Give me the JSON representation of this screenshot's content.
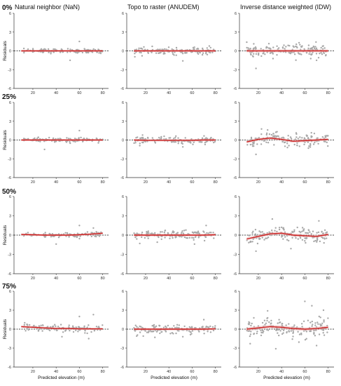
{
  "figure": {
    "column_titles": [
      "Natural neighbor (NaN)",
      "Topo to raster (ANUDEM)",
      "Inverse distance weighted (IDW)"
    ],
    "row_labels": [
      "0%",
      "25%",
      "50%",
      "75%"
    ],
    "xlabel": "Predicted elevation (m)",
    "ylabel": "Residuals"
  },
  "colors": {
    "points": "#a8a8a8",
    "fit": "#cc1f1f",
    "band": "#e8b0b0",
    "zero_line": "#111111",
    "axis": "#333333"
  },
  "chart_data": [
    {
      "type": "scatter",
      "row": "0%",
      "method": "Natural neighbor (NaN)",
      "xlim": [
        5,
        85
      ],
      "ylim": [
        -6,
        6
      ],
      "xticks": [
        20,
        40,
        60,
        80
      ],
      "yticks": [
        -6,
        -3,
        0,
        3,
        6
      ],
      "spread": 0.3,
      "outliers": [
        [
          52,
          -1.5
        ],
        [
          60,
          1.5
        ]
      ],
      "x_range": [
        12,
        80
      ],
      "n": 120,
      "fit": {
        "x": [
          10,
          20,
          30,
          40,
          50,
          60,
          70,
          80
        ],
        "y": [
          0,
          0,
          0,
          0,
          0,
          0,
          0,
          0
        ]
      }
    },
    {
      "type": "scatter",
      "row": "0%",
      "method": "Topo to raster (ANUDEM)",
      "xlim": [
        5,
        85
      ],
      "ylim": [
        -6,
        6
      ],
      "xticks": [
        20,
        40,
        60,
        80
      ],
      "yticks": [
        -6,
        -3,
        0,
        3,
        6
      ],
      "spread": 0.45,
      "outliers": [
        [
          52,
          -1.6
        ],
        [
          17,
          -0.8
        ]
      ],
      "x_range": [
        10,
        80
      ],
      "n": 140,
      "fit": {
        "x": [
          10,
          20,
          30,
          40,
          50,
          60,
          70,
          80
        ],
        "y": [
          0,
          0,
          0,
          0,
          0,
          0,
          0,
          0
        ]
      }
    },
    {
      "type": "scatter",
      "row": "0%",
      "method": "Inverse distance weighted (IDW)",
      "xlim": [
        5,
        85
      ],
      "ylim": [
        -6,
        6
      ],
      "xticks": [
        20,
        40,
        60,
        80
      ],
      "yticks": [
        -6,
        -3,
        0,
        3,
        6
      ],
      "spread": 0.85,
      "outliers": [
        [
          18,
          -2.8
        ],
        [
          55,
          1.3
        ],
        [
          70,
          -1.5
        ]
      ],
      "x_range": [
        10,
        80
      ],
      "n": 150,
      "fit": {
        "x": [
          10,
          20,
          30,
          40,
          50,
          60,
          70,
          80
        ],
        "y": [
          0,
          0,
          0,
          0,
          0,
          0,
          0,
          0
        ]
      }
    },
    {
      "type": "scatter",
      "row": "25%",
      "method": "Natural neighbor (NaN)",
      "xlim": [
        5,
        85
      ],
      "ylim": [
        -6,
        6
      ],
      "xticks": [
        20,
        40,
        60,
        80
      ],
      "yticks": [
        -6,
        -3,
        0,
        3,
        6
      ],
      "spread": 0.3,
      "outliers": [
        [
          30,
          -1.5
        ],
        [
          60,
          1.5
        ]
      ],
      "x_range": [
        12,
        80
      ],
      "n": 120,
      "fit": {
        "x": [
          10,
          20,
          30,
          40,
          50,
          60,
          70,
          80
        ],
        "y": [
          0,
          0,
          0,
          0,
          0,
          0,
          0,
          0
        ]
      }
    },
    {
      "type": "scatter",
      "row": "25%",
      "method": "Topo to raster (ANUDEM)",
      "xlim": [
        5,
        85
      ],
      "ylim": [
        -6,
        6
      ],
      "xticks": [
        20,
        40,
        60,
        80
      ],
      "yticks": [
        -6,
        -3,
        0,
        3,
        6
      ],
      "spread": 0.45,
      "outliers": [
        [
          15,
          -0.9
        ],
        [
          52,
          -1.1
        ]
      ],
      "x_range": [
        10,
        80
      ],
      "n": 140,
      "fit": {
        "x": [
          10,
          20,
          30,
          40,
          50,
          60,
          70,
          80
        ],
        "y": [
          0,
          -0.05,
          -0.05,
          -0.05,
          -0.05,
          -0.05,
          0,
          0
        ]
      }
    },
    {
      "type": "scatter",
      "row": "25%",
      "method": "Inverse distance weighted (IDW)",
      "xlim": [
        5,
        85
      ],
      "ylim": [
        -6,
        6
      ],
      "xticks": [
        20,
        40,
        60,
        80
      ],
      "yticks": [
        -6,
        -3,
        0,
        3,
        6
      ],
      "spread": 0.85,
      "outliers": [
        [
          18,
          -2.3
        ],
        [
          28,
          1.6
        ],
        [
          45,
          -1.2
        ]
      ],
      "x_range": [
        10,
        80
      ],
      "n": 150,
      "fit": {
        "x": [
          10,
          20,
          30,
          40,
          50,
          60,
          70,
          80
        ],
        "y": [
          -0.3,
          0.1,
          0.3,
          0.1,
          -0.2,
          -0.1,
          0,
          0.1
        ]
      }
    },
    {
      "type": "scatter",
      "row": "50%",
      "method": "Natural neighbor (NaN)",
      "xlim": [
        5,
        85
      ],
      "ylim": [
        -6,
        6
      ],
      "xticks": [
        20,
        40,
        60,
        80
      ],
      "yticks": [
        -6,
        -3,
        0,
        3,
        6
      ],
      "spread": 0.35,
      "outliers": [
        [
          40,
          -1.4
        ],
        [
          60,
          1.5
        ],
        [
          72,
          1.1
        ]
      ],
      "x_range": [
        12,
        80
      ],
      "n": 120,
      "fit": {
        "x": [
          10,
          20,
          30,
          40,
          50,
          60,
          70,
          80
        ],
        "y": [
          0.1,
          0.05,
          0,
          0,
          0,
          0.05,
          0.15,
          0.3
        ]
      }
    },
    {
      "type": "scatter",
      "row": "50%",
      "method": "Topo to raster (ANUDEM)",
      "xlim": [
        5,
        85
      ],
      "ylim": [
        -6,
        6
      ],
      "xticks": [
        20,
        40,
        60,
        80
      ],
      "yticks": [
        -6,
        -3,
        0,
        3,
        6
      ],
      "spread": 0.55,
      "outliers": [
        [
          15,
          -1.3
        ],
        [
          30,
          -1.1
        ],
        [
          62,
          -1.4
        ],
        [
          72,
          1.5
        ]
      ],
      "x_range": [
        10,
        80
      ],
      "n": 140,
      "fit": {
        "x": [
          10,
          20,
          30,
          40,
          50,
          60,
          70,
          80
        ],
        "y": [
          0,
          0,
          0,
          0,
          0,
          0,
          0,
          0.05
        ]
      }
    },
    {
      "type": "scatter",
      "row": "50%",
      "method": "Inverse distance weighted (IDW)",
      "xlim": [
        5,
        85
      ],
      "ylim": [
        -6,
        6
      ],
      "xticks": [
        20,
        40,
        60,
        80
      ],
      "yticks": [
        -6,
        -3,
        0,
        3,
        6
      ],
      "spread": 0.9,
      "outliers": [
        [
          18,
          -2.5
        ],
        [
          32,
          2.5
        ],
        [
          48,
          -2.1
        ],
        [
          72,
          2.2
        ]
      ],
      "x_range": [
        10,
        80
      ],
      "n": 150,
      "fit": {
        "x": [
          10,
          20,
          30,
          40,
          50,
          60,
          70,
          80
        ],
        "y": [
          -0.6,
          -0.2,
          0.2,
          0.3,
          0,
          -0.1,
          -0.2,
          0.1
        ]
      }
    },
    {
      "type": "scatter",
      "row": "75%",
      "method": "Natural neighbor (NaN)",
      "xlim": [
        5,
        85
      ],
      "ylim": [
        -6,
        6
      ],
      "xticks": [
        20,
        40,
        60,
        80
      ],
      "yticks": [
        -6,
        -3,
        0,
        3,
        6
      ],
      "spread": 0.45,
      "outliers": [
        [
          13,
          1.0
        ],
        [
          45,
          -1.2
        ],
        [
          60,
          2.0
        ],
        [
          68,
          -1.5
        ],
        [
          72,
          2.3
        ]
      ],
      "x_range": [
        12,
        80
      ],
      "n": 120,
      "fit": {
        "x": [
          10,
          20,
          30,
          40,
          50,
          60,
          70,
          80
        ],
        "y": [
          0.4,
          0.3,
          0.2,
          0.1,
          0.1,
          0.05,
          0.05,
          0.05
        ]
      }
    },
    {
      "type": "scatter",
      "row": "75%",
      "method": "Topo to raster (ANUDEM)",
      "xlim": [
        5,
        85
      ],
      "ylim": [
        -6,
        6
      ],
      "xticks": [
        20,
        40,
        60,
        80
      ],
      "yticks": [
        -6,
        -3,
        0,
        3,
        6
      ],
      "spread": 0.55,
      "outliers": [
        [
          18,
          -1.1
        ],
        [
          28,
          -1.3
        ],
        [
          52,
          -1.2
        ],
        [
          70,
          1.5
        ]
      ],
      "x_range": [
        10,
        80
      ],
      "n": 140,
      "fit": {
        "x": [
          10,
          20,
          30,
          40,
          50,
          60,
          70,
          80
        ],
        "y": [
          0,
          0,
          0,
          0,
          0,
          0,
          0,
          0.05
        ]
      }
    },
    {
      "type": "scatter",
      "row": "75%",
      "method": "Inverse distance weighted (IDW)",
      "xlim": [
        5,
        85
      ],
      "ylim": [
        -6,
        6
      ],
      "xticks": [
        20,
        40,
        60,
        80
      ],
      "yticks": [
        -6,
        -3,
        0,
        3,
        6
      ],
      "spread": 1.2,
      "outliers": [
        [
          13,
          -2.3
        ],
        [
          28,
          2.9
        ],
        [
          35,
          -3.1
        ],
        [
          60,
          4.4
        ],
        [
          66,
          3.7
        ],
        [
          70,
          -2.6
        ],
        [
          76,
          3.0
        ]
      ],
      "x_range": [
        10,
        80
      ],
      "n": 160,
      "fit": {
        "x": [
          10,
          20,
          30,
          40,
          50,
          60,
          70,
          80
        ],
        "y": [
          0,
          0.2,
          0.4,
          0.3,
          0.1,
          0,
          0.1,
          0.3
        ]
      }
    }
  ]
}
